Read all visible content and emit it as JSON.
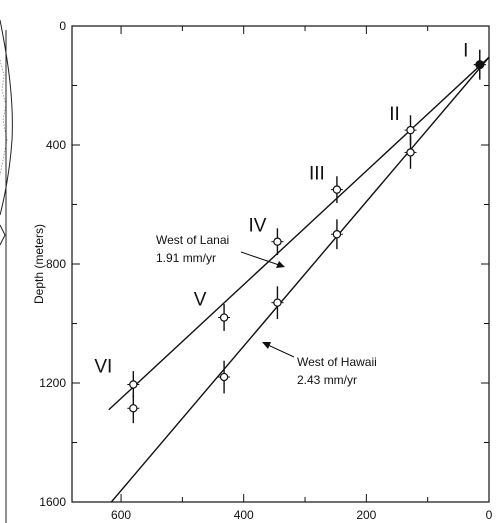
{
  "chart_data": {
    "type": "scatter",
    "title": "",
    "xlabel": "",
    "ylabel": "Depth (meters)",
    "xlim": [
      680,
      0
    ],
    "ylim": [
      0,
      1600
    ],
    "x_ticks": [
      600,
      400,
      200,
      0
    ],
    "y_ticks": [
      0,
      400,
      800,
      1200,
      1600
    ],
    "grid": false,
    "series": [
      {
        "name": "West of Lanai",
        "rate_label": "1.91 mm/yr",
        "points": [
          {
            "x": 15,
            "y": 130,
            "yerr": 50,
            "label": "I"
          },
          {
            "x": 128,
            "y": 350,
            "yerr": 50,
            "label": "II"
          },
          {
            "x": 248,
            "y": 550,
            "yerr": 45,
            "label": "III"
          },
          {
            "x": 345,
            "y": 725,
            "yerr": 45,
            "label": "IV"
          },
          {
            "x": 432,
            "y": 980,
            "yerr": 45,
            "label": "V"
          },
          {
            "x": 580,
            "y": 1205,
            "yerr": 45,
            "label": "VI"
          }
        ],
        "fit": {
          "x": [
            0,
            620
          ],
          "y": [
            105,
            1290
          ]
        }
      },
      {
        "name": "West of Hawaii",
        "rate_label": "2.43 mm/yr",
        "points": [
          {
            "x": 15,
            "y": 130,
            "yerr": 50
          },
          {
            "x": 128,
            "y": 425,
            "yerr": 55
          },
          {
            "x": 248,
            "y": 700,
            "yerr": 50
          },
          {
            "x": 345,
            "y": 930,
            "yerr": 55
          },
          {
            "x": 432,
            "y": 1180,
            "yerr": 55
          },
          {
            "x": 580,
            "y": 1285,
            "yerr": 50
          }
        ],
        "fit": {
          "x": [
            0,
            655
          ],
          "y": [
            105,
            1695
          ]
        }
      }
    ]
  }
}
